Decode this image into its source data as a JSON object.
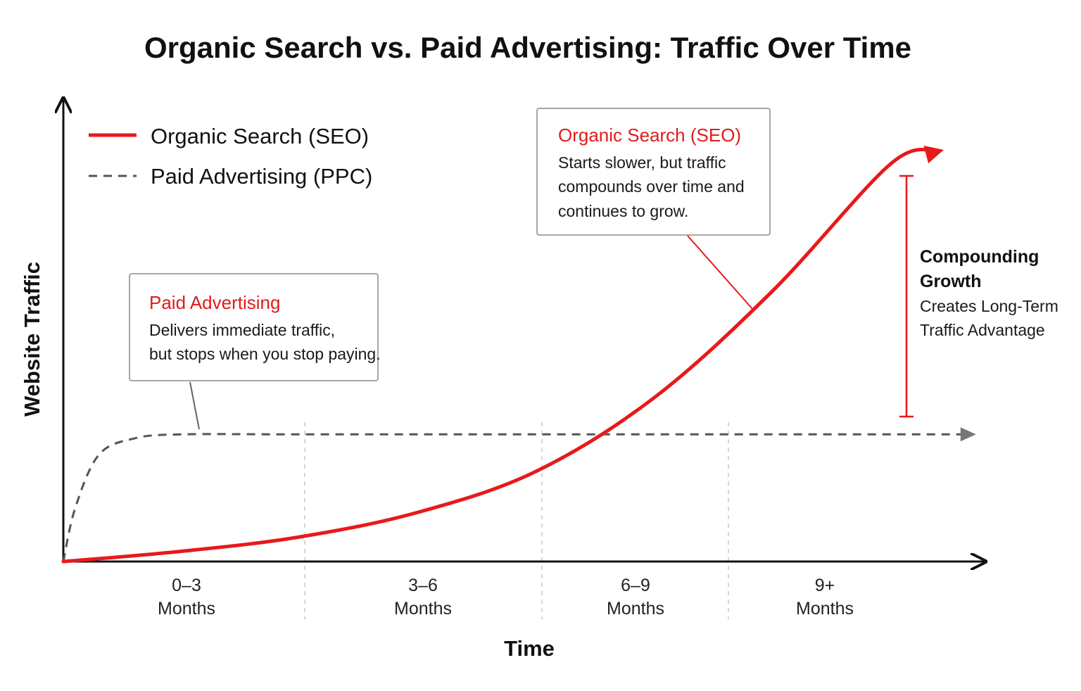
{
  "chart_data": {
    "type": "line",
    "title": "Organic Search vs. Paid Advertising: Traffic Over Time",
    "xlabel": "Time",
    "ylabel": "Website Traffic",
    "categories": [
      "0–3|Months",
      "3–6|Months",
      "6–9|Months",
      "9+|Months"
    ],
    "legend_position": "top-left",
    "series": [
      {
        "name": "Organic Search (SEO)",
        "color": "#e8191b",
        "style": "solid",
        "x": [
          0,
          0.5,
          1.0,
          1.5,
          2.0,
          2.5,
          3.0,
          3.5,
          3.7
        ],
        "y": [
          0,
          0.025,
          0.06,
          0.12,
          0.22,
          0.4,
          0.66,
          0.97,
          1.0
        ]
      },
      {
        "name": "Paid Advertising (PPC)",
        "color": "#555555",
        "style": "dashed",
        "x": [
          0,
          0.05,
          0.15,
          0.3,
          0.5,
          1.0,
          2.0,
          3.0,
          3.8
        ],
        "y": [
          0,
          0.13,
          0.26,
          0.3,
          0.31,
          0.31,
          0.31,
          0.31,
          0.31
        ]
      }
    ],
    "annotations": {
      "paid": {
        "title": "Paid Advertising",
        "lines": [
          "Delivers immediate traffic,",
          "but stops when you stop paying."
        ]
      },
      "organic": {
        "title": "Organic Search (SEO)",
        "lines": [
          "Starts slower, but traffic",
          "compounds over time and",
          "continues to grow."
        ]
      },
      "compounding": {
        "title_lines": [
          "Compounding",
          "Growth"
        ],
        "lines": [
          "Creates Long-Term",
          "Traffic Advantage"
        ]
      }
    },
    "grid": "vertical dashed separators between periods"
  }
}
